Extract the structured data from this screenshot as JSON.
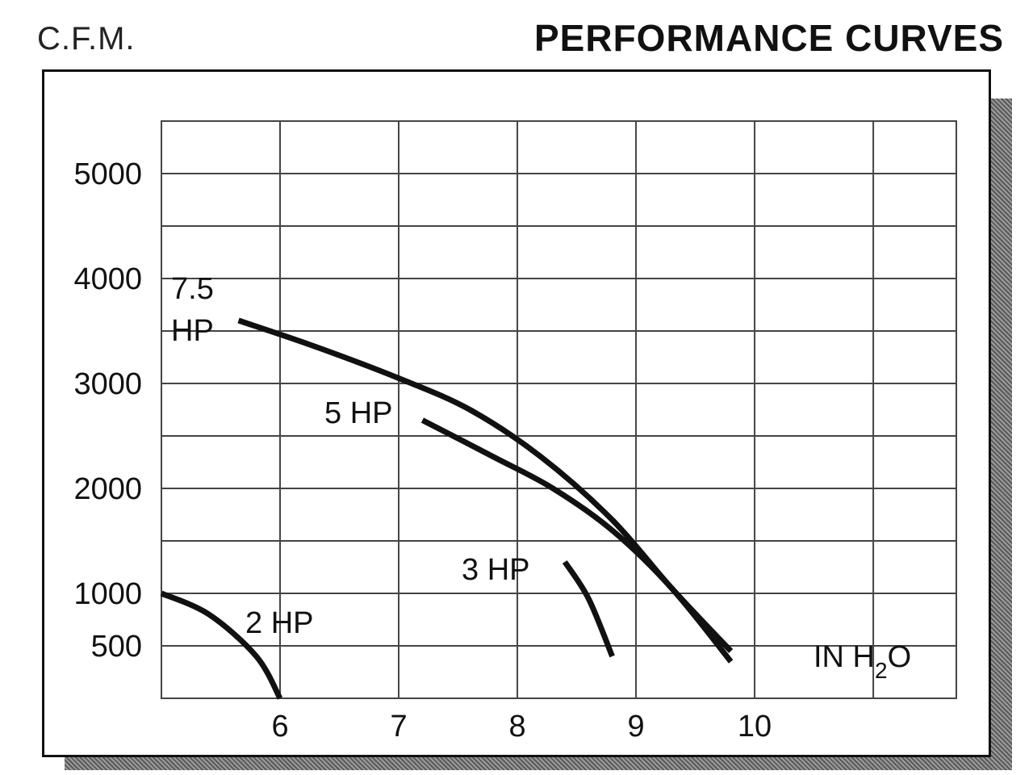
{
  "chart_data": {
    "type": "line",
    "title": "PERFORMANCE CURVES",
    "ylabel": "C.F.M.",
    "xlabel": "IN H2O",
    "xlabel_main": "IN H",
    "xlabel_sub": "2",
    "xlabel_tail": "O",
    "xlim": [
      5,
      11.7
    ],
    "ylim": [
      0,
      5500
    ],
    "x_ticks": [
      6,
      7,
      8,
      9,
      10
    ],
    "y_ticks": [
      500,
      1000,
      2000,
      3000,
      4000,
      5000
    ],
    "grid": true,
    "series": [
      {
        "name": "7.5 HP",
        "label_lines": [
          "7.5",
          "HP"
        ],
        "x": [
          5.65,
          6.3,
          7.0,
          7.6,
          8.2,
          8.8,
          9.3,
          9.8
        ],
        "y": [
          3600,
          3350,
          3050,
          2750,
          2300,
          1700,
          1050,
          450
        ]
      },
      {
        "name": "5 HP",
        "label_lines": [
          "5 HP"
        ],
        "x": [
          7.2,
          7.8,
          8.3,
          8.8,
          9.3,
          9.8
        ],
        "y": [
          2650,
          2300,
          2000,
          1600,
          1050,
          350
        ]
      },
      {
        "name": "3 HP",
        "label_lines": [
          "3 HP"
        ],
        "x": [
          8.4,
          8.6,
          8.8
        ],
        "y": [
          1300,
          950,
          400
        ]
      },
      {
        "name": "2 HP",
        "label_lines": [
          "2 HP"
        ],
        "x": [
          5.0,
          5.4,
          5.8,
          6.0
        ],
        "y": [
          1000,
          800,
          400,
          0
        ]
      }
    ]
  }
}
